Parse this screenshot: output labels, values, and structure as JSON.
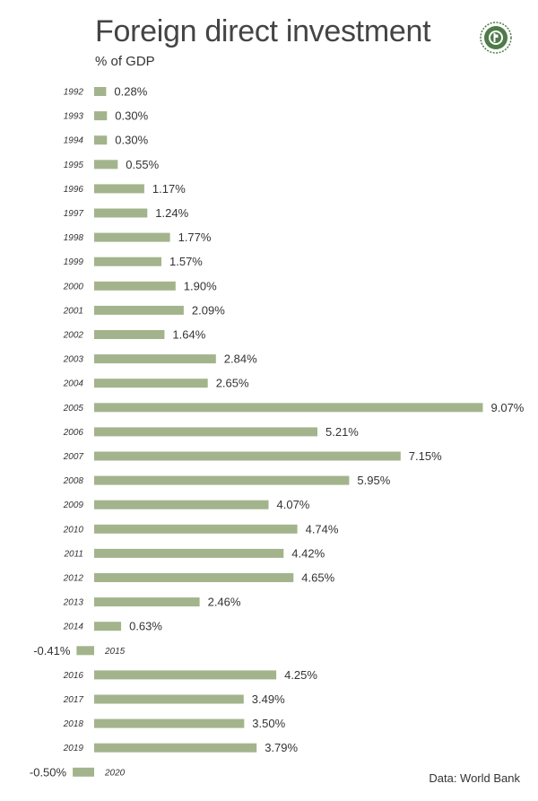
{
  "header": {
    "title": "Foreign direct investment",
    "subtitle": "% of GDP"
  },
  "logo": {
    "icon": "circular-seal-logo",
    "color": "#4f7a49"
  },
  "source": {
    "text": "Data: World Bank"
  },
  "colors": {
    "bar": "#a3b48c",
    "text": "#333333"
  },
  "chart_data": {
    "type": "bar",
    "orientation": "horizontal",
    "title": "Foreign direct investment",
    "subtitle": "% of GDP",
    "xlabel": "",
    "ylabel": "",
    "grid": false,
    "unit": "%",
    "categories": [
      "1992",
      "1993",
      "1994",
      "1995",
      "1996",
      "1997",
      "1998",
      "1999",
      "2000",
      "2001",
      "2002",
      "2003",
      "2004",
      "2005",
      "2006",
      "2007",
      "2008",
      "2009",
      "2010",
      "2011",
      "2012",
      "2013",
      "2014",
      "2015",
      "2016",
      "2017",
      "2018",
      "2019",
      "2020"
    ],
    "values": [
      0.28,
      0.3,
      0.3,
      0.55,
      1.17,
      1.24,
      1.77,
      1.57,
      1.9,
      2.09,
      1.64,
      2.84,
      2.65,
      9.07,
      5.21,
      7.15,
      5.95,
      4.07,
      4.74,
      4.42,
      4.65,
      2.46,
      0.63,
      -0.41,
      4.25,
      3.49,
      3.5,
      3.79,
      -0.5
    ],
    "labels": [
      "0.28%",
      "0.30%",
      "0.30%",
      "0.55%",
      "1.17%",
      "1.24%",
      "1.77%",
      "1.57%",
      "1.90%",
      "2.09%",
      "1.64%",
      "2.84%",
      "2.65%",
      "9.07%",
      "5.21%",
      "7.15%",
      "5.95%",
      "4.07%",
      "4.74%",
      "4.42%",
      "4.65%",
      "2.46%",
      "0.63%",
      "-0.41%",
      "4.25%",
      "3.49%",
      "3.50%",
      "3.79%",
      "-0.50%"
    ]
  }
}
